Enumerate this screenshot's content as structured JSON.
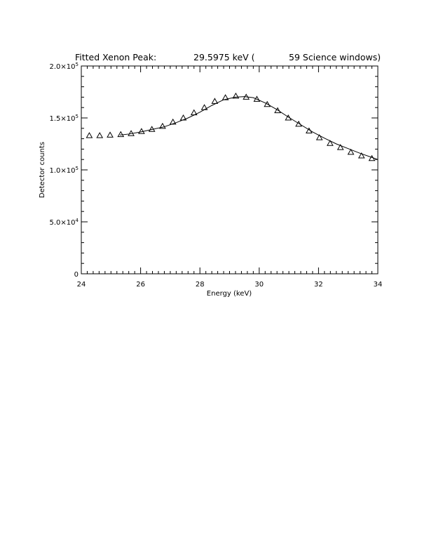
{
  "chart_data": {
    "type": "scatter",
    "title": {
      "label": "Fitted Xenon Peak:",
      "value": "29.5975 keV (",
      "windows": "59 Science windows)"
    },
    "xlabel": "Energy (keV)",
    "ylabel": "Detector counts",
    "xlim": [
      24,
      34
    ],
    "ylim": [
      0,
      200000
    ],
    "x_ticks": [
      24,
      26,
      28,
      30,
      32,
      34
    ],
    "y_ticks": [
      {
        "value": 0,
        "mantissa": "0",
        "exponent": ""
      },
      {
        "value": 50000,
        "mantissa": "5.0×10",
        "exponent": "4"
      },
      {
        "value": 100000,
        "mantissa": "1.0×10",
        "exponent": "5"
      },
      {
        "value": 150000,
        "mantissa": "1.5×10",
        "exponent": "5"
      },
      {
        "value": 200000,
        "mantissa": "2.0×10",
        "exponent": "5"
      }
    ],
    "grid": false,
    "series": [
      {
        "marker": "triangle",
        "x": [
          24.27,
          24.62,
          24.97,
          25.33,
          25.68,
          26.03,
          26.38,
          26.74,
          27.09,
          27.44,
          27.8,
          28.15,
          28.5,
          28.86,
          29.21,
          29.56,
          29.92,
          30.27,
          30.62,
          30.98,
          31.33,
          31.68,
          32.03,
          32.39,
          32.74,
          33.09,
          33.45,
          33.8
        ],
        "y": [
          133000,
          133000,
          133500,
          134000,
          135000,
          137000,
          139000,
          142000,
          146000,
          150000,
          155000,
          160000,
          166000,
          169500,
          171000,
          170000,
          168000,
          163000,
          157000,
          150000,
          144000,
          137500,
          131000,
          125500,
          121500,
          117000,
          113500,
          111000
        ]
      },
      {
        "marker": "line",
        "x": [
          25.3,
          25.6,
          26.0,
          26.4,
          26.8,
          27.2,
          27.6,
          28.0,
          28.4,
          28.8,
          29.2,
          29.5,
          29.8,
          30.2,
          30.6,
          31.0,
          31.4,
          31.8,
          32.2,
          32.6,
          33.0,
          33.4,
          33.8,
          34.0
        ],
        "y": [
          133500,
          134500,
          136500,
          139000,
          141500,
          145500,
          150000,
          155500,
          162000,
          167500,
          170000,
          170500,
          169500,
          164500,
          158000,
          150500,
          143500,
          136500,
          130500,
          125000,
          120500,
          116000,
          112000,
          110000
        ]
      }
    ]
  }
}
